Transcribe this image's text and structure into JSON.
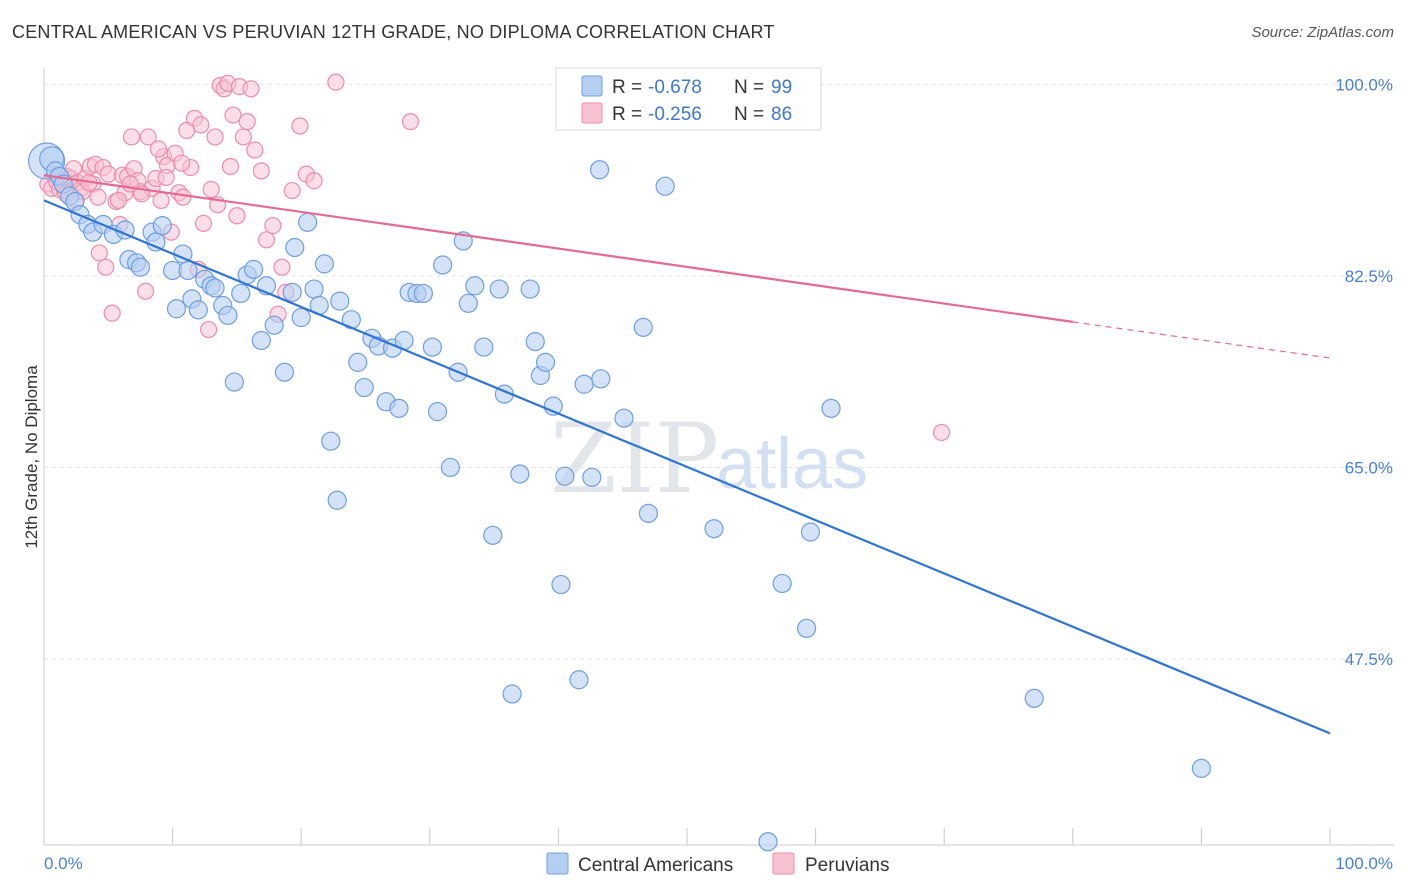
{
  "header": {
    "title": "CENTRAL AMERICAN VS PERUVIAN 12TH GRADE, NO DIPLOMA CORRELATION CHART",
    "source": "Source: ZipAtlas.com"
  },
  "watermark": {
    "zip": "ZIP",
    "atlas": "atlas"
  },
  "legend": {
    "blue": {
      "r_label": "R = ",
      "r_value": "-0.678",
      "n_label": "N = ",
      "n_value": "99"
    },
    "pink": {
      "r_label": "R = ",
      "r_value": "-0.256",
      "n_label": "N = ",
      "n_value": "86"
    }
  },
  "bottom_legend": {
    "blue": "Central Americans",
    "pink": "Peruvians"
  },
  "colors": {
    "blue_fill": "#b5cff2",
    "blue_stroke": "#6f9fe0",
    "blue_line": "#2f74d4",
    "pink_fill": "#f7c3d3",
    "pink_stroke": "#ec8dab",
    "pink_line": "#e46a93",
    "grid": "#e4e4e4",
    "tick_text": "#4a7fd0"
  },
  "chart_data": {
    "type": "scatter",
    "title": "CENTRAL AMERICAN VS PERUVIAN 12TH GRADE, NO DIPLOMA CORRELATION CHART",
    "xlabel": "",
    "ylabel": "12th Grade, No Diploma",
    "xlim": [
      0,
      100
    ],
    "ylim": [
      30.5,
      101.5
    ],
    "x_tick_labels": [
      "0.0%",
      "100.0%"
    ],
    "y_ticks": [
      47.5,
      65.0,
      82.5,
      100.0
    ],
    "y_tick_labels": [
      "47.5%",
      "65.0%",
      "82.5%",
      "100.0%"
    ],
    "grid": true,
    "legend_position": "top-center",
    "series": [
      {
        "name": "Central Americans",
        "r": -0.678,
        "n": 99,
        "trend": {
          "x": [
            0,
            100
          ],
          "y": [
            89.4,
            40.7
          ],
          "style": "solid"
        },
        "points": [
          [
            0.2,
            93.0
          ],
          [
            0.6,
            93.2
          ],
          [
            0.9,
            92.1
          ],
          [
            1.2,
            91.6
          ],
          [
            1.5,
            90.9
          ],
          [
            2.0,
            89.8
          ],
          [
            2.4,
            89.3
          ],
          [
            2.8,
            88.1
          ],
          [
            3.4,
            87.2
          ],
          [
            3.8,
            86.5
          ],
          [
            4.6,
            87.2
          ],
          [
            5.4,
            86.3
          ],
          [
            6.3,
            86.7
          ],
          [
            6.6,
            84.0
          ],
          [
            7.2,
            83.7
          ],
          [
            7.5,
            83.3
          ],
          [
            8.4,
            86.5
          ],
          [
            8.7,
            85.6
          ],
          [
            9.2,
            87.1
          ],
          [
            10.0,
            83.0
          ],
          [
            10.3,
            79.5
          ],
          [
            10.8,
            84.5
          ],
          [
            11.2,
            83.0
          ],
          [
            11.5,
            80.4
          ],
          [
            12.0,
            79.4
          ],
          [
            12.5,
            82.2
          ],
          [
            13.0,
            81.6
          ],
          [
            13.3,
            81.4
          ],
          [
            13.9,
            79.8
          ],
          [
            14.3,
            78.9
          ],
          [
            14.8,
            72.8
          ],
          [
            15.3,
            80.9
          ],
          [
            15.8,
            82.6
          ],
          [
            16.3,
            83.1
          ],
          [
            16.9,
            76.6
          ],
          [
            17.3,
            81.6
          ],
          [
            17.9,
            78.0
          ],
          [
            18.7,
            73.7
          ],
          [
            19.3,
            81.0
          ],
          [
            19.5,
            85.1
          ],
          [
            20.0,
            78.7
          ],
          [
            20.5,
            87.4
          ],
          [
            21.0,
            81.3
          ],
          [
            21.4,
            79.8
          ],
          [
            21.8,
            83.6
          ],
          [
            22.3,
            67.4
          ],
          [
            22.8,
            62.0
          ],
          [
            23.0,
            80.2
          ],
          [
            23.9,
            78.5
          ],
          [
            24.4,
            74.6
          ],
          [
            24.9,
            72.3
          ],
          [
            25.5,
            76.8
          ],
          [
            26.0,
            76.1
          ],
          [
            26.6,
            71.0
          ],
          [
            27.1,
            75.9
          ],
          [
            27.6,
            70.4
          ],
          [
            28.0,
            76.6
          ],
          [
            28.4,
            81.0
          ],
          [
            29.0,
            80.9
          ],
          [
            29.5,
            80.9
          ],
          [
            30.2,
            76.0
          ],
          [
            30.6,
            70.1
          ],
          [
            31.0,
            83.5
          ],
          [
            31.6,
            65.0
          ],
          [
            32.2,
            73.7
          ],
          [
            32.6,
            85.7
          ],
          [
            33.0,
            80.0
          ],
          [
            33.5,
            81.6
          ],
          [
            34.2,
            76.0
          ],
          [
            34.9,
            58.8
          ],
          [
            35.4,
            81.3
          ],
          [
            35.8,
            71.7
          ],
          [
            36.4,
            44.3
          ],
          [
            37.0,
            64.4
          ],
          [
            37.8,
            81.3
          ],
          [
            38.2,
            76.5
          ],
          [
            38.6,
            73.4
          ],
          [
            39.0,
            74.6
          ],
          [
            39.6,
            70.6
          ],
          [
            40.2,
            54.3
          ],
          [
            40.5,
            64.2
          ],
          [
            41.6,
            45.6
          ],
          [
            42.0,
            72.6
          ],
          [
            42.6,
            64.1
          ],
          [
            43.2,
            92.2
          ],
          [
            43.3,
            73.1
          ],
          [
            45.1,
            69.5
          ],
          [
            46.6,
            77.8
          ],
          [
            47.0,
            60.8
          ],
          [
            48.3,
            90.7
          ],
          [
            49.1,
            100.1
          ],
          [
            52.1,
            59.4
          ],
          [
            54.2,
            100.6
          ],
          [
            56.3,
            30.8
          ],
          [
            57.4,
            54.4
          ],
          [
            59.3,
            50.3
          ],
          [
            59.6,
            59.1
          ],
          [
            61.2,
            70.4
          ],
          [
            77.0,
            43.9
          ],
          [
            90.0,
            37.5
          ]
        ]
      },
      {
        "name": "Peruvians",
        "r": -0.256,
        "n": 86,
        "trend": {
          "x": [
            0,
            80
          ],
          "y": [
            91.7,
            78.3
          ],
          "x_dashed_to": 100,
          "y_dashed_to": 75.0,
          "style": "solid-then-dashed"
        },
        "points": [
          [
            0.3,
            90.9
          ],
          [
            0.6,
            90.5
          ],
          [
            0.8,
            91.7
          ],
          [
            1.0,
            91.1
          ],
          [
            1.2,
            90.4
          ],
          [
            1.4,
            91.3
          ],
          [
            1.6,
            90.3
          ],
          [
            1.8,
            91.6
          ],
          [
            2.1,
            91.4
          ],
          [
            2.3,
            92.3
          ],
          [
            2.6,
            91.0
          ],
          [
            2.9,
            90.5
          ],
          [
            3.2,
            91.4
          ],
          [
            3.6,
            92.5
          ],
          [
            3.8,
            90.9
          ],
          [
            4.0,
            92.7
          ],
          [
            4.3,
            84.6
          ],
          [
            4.6,
            92.4
          ],
          [
            4.8,
            83.3
          ],
          [
            5.0,
            91.8
          ],
          [
            5.3,
            79.1
          ],
          [
            5.6,
            89.3
          ],
          [
            5.9,
            87.2
          ],
          [
            6.1,
            91.7
          ],
          [
            6.3,
            90.1
          ],
          [
            6.5,
            91.6
          ],
          [
            6.8,
            95.2
          ],
          [
            7.0,
            92.3
          ],
          [
            7.3,
            91.2
          ],
          [
            7.5,
            90.2
          ],
          [
            7.9,
            81.1
          ],
          [
            8.1,
            95.2
          ],
          [
            8.4,
            90.5
          ],
          [
            8.7,
            91.4
          ],
          [
            9.1,
            89.4
          ],
          [
            9.3,
            93.4
          ],
          [
            9.6,
            92.6
          ],
          [
            9.9,
            86.5
          ],
          [
            10.2,
            93.7
          ],
          [
            10.5,
            90.1
          ],
          [
            10.8,
            89.7
          ],
          [
            11.1,
            95.8
          ],
          [
            11.4,
            92.4
          ],
          [
            11.7,
            96.9
          ],
          [
            12.0,
            83.1
          ],
          [
            12.4,
            87.3
          ],
          [
            12.8,
            77.6
          ],
          [
            13.0,
            90.4
          ],
          [
            13.3,
            95.2
          ],
          [
            13.7,
            99.9
          ],
          [
            14.0,
            99.6
          ],
          [
            14.3,
            100.1
          ],
          [
            14.7,
            97.2
          ],
          [
            15.2,
            99.8
          ],
          [
            15.5,
            95.2
          ],
          [
            15.8,
            96.6
          ],
          [
            16.1,
            99.6
          ],
          [
            16.4,
            94.0
          ],
          [
            16.9,
            92.1
          ],
          [
            17.3,
            85.8
          ],
          [
            17.8,
            87.1
          ],
          [
            18.2,
            79.0
          ],
          [
            18.5,
            83.3
          ],
          [
            18.8,
            81.0
          ],
          [
            19.3,
            90.3
          ],
          [
            19.9,
            96.2
          ],
          [
            20.4,
            91.8
          ],
          [
            21.0,
            91.2
          ],
          [
            22.7,
            100.2
          ],
          [
            28.5,
            96.6
          ],
          [
            69.8,
            68.2
          ],
          [
            1.7,
            90.0
          ],
          [
            2.5,
            89.4
          ],
          [
            3.0,
            90.2
          ],
          [
            3.5,
            91.0
          ],
          [
            4.2,
            89.7
          ],
          [
            5.8,
            89.4
          ],
          [
            6.7,
            90.9
          ],
          [
            7.6,
            90.0
          ],
          [
            8.9,
            94.1
          ],
          [
            9.5,
            91.5
          ],
          [
            10.7,
            92.8
          ],
          [
            12.2,
            96.3
          ],
          [
            13.5,
            89.0
          ],
          [
            14.5,
            92.5
          ],
          [
            15.0,
            88.0
          ]
        ]
      }
    ]
  }
}
